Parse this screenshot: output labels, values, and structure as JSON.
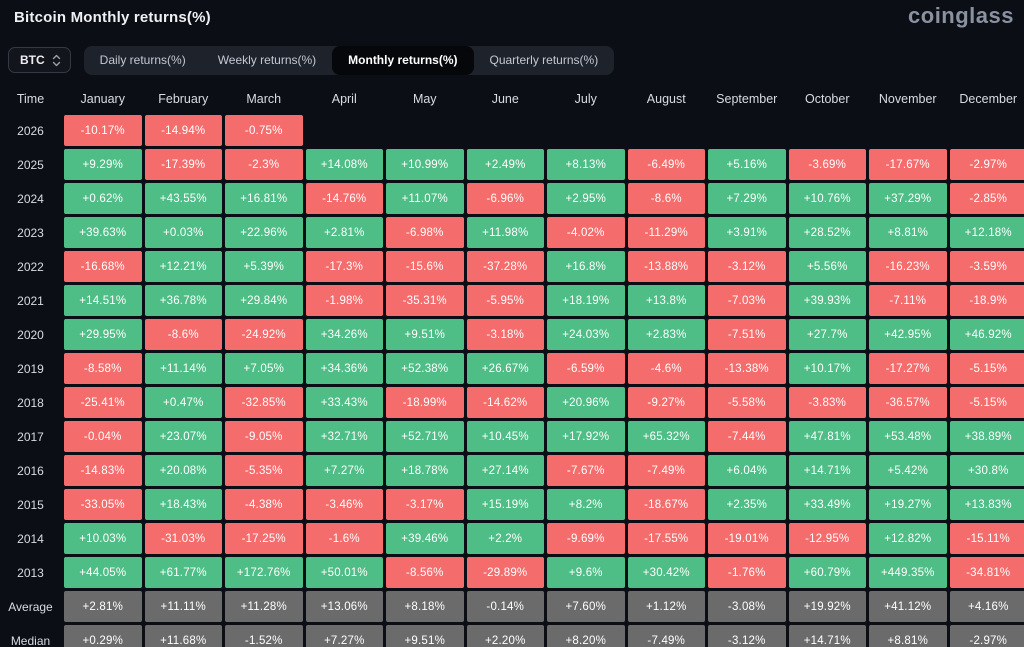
{
  "page": {
    "title": "Bitcoin Monthly returns(%)",
    "logo": "coinglass"
  },
  "controls": {
    "symbol": {
      "label": "BTC"
    },
    "tabs": [
      {
        "label": "Daily returns(%)",
        "active": false
      },
      {
        "label": "Weekly returns(%)",
        "active": false
      },
      {
        "label": "Monthly returns(%)",
        "active": true
      },
      {
        "label": "Quarterly returns(%)",
        "active": false
      }
    ]
  },
  "colors": {
    "positive": "#4ebe86",
    "negative": "#f56c6c",
    "summary": "#6b6b6b",
    "background": "#0b0e14"
  },
  "chart_data": {
    "type": "heatmap",
    "title": "Bitcoin Monthly returns(%)",
    "row_header": "Time",
    "columns": [
      "January",
      "February",
      "March",
      "April",
      "May",
      "June",
      "July",
      "August",
      "September",
      "October",
      "November",
      "December"
    ],
    "legend": "green = positive return, red = negative return, gray = summary rows",
    "rows": [
      {
        "label": "2026",
        "kind": "year",
        "values": [
          "-10.17%",
          "-14.94%",
          "-0.75%",
          null,
          null,
          null,
          null,
          null,
          null,
          null,
          null,
          null
        ]
      },
      {
        "label": "2025",
        "kind": "year",
        "values": [
          "+9.29%",
          "-17.39%",
          "-2.3%",
          "+14.08%",
          "+10.99%",
          "+2.49%",
          "+8.13%",
          "-6.49%",
          "+5.16%",
          "-3.69%",
          "-17.67%",
          "-2.97%"
        ]
      },
      {
        "label": "2024",
        "kind": "year",
        "values": [
          "+0.62%",
          "+43.55%",
          "+16.81%",
          "-14.76%",
          "+11.07%",
          "-6.96%",
          "+2.95%",
          "-8.6%",
          "+7.29%",
          "+10.76%",
          "+37.29%",
          "-2.85%"
        ]
      },
      {
        "label": "2023",
        "kind": "year",
        "values": [
          "+39.63%",
          "+0.03%",
          "+22.96%",
          "+2.81%",
          "-6.98%",
          "+11.98%",
          "-4.02%",
          "-11.29%",
          "+3.91%",
          "+28.52%",
          "+8.81%",
          "+12.18%"
        ]
      },
      {
        "label": "2022",
        "kind": "year",
        "values": [
          "-16.68%",
          "+12.21%",
          "+5.39%",
          "-17.3%",
          "-15.6%",
          "-37.28%",
          "+16.8%",
          "-13.88%",
          "-3.12%",
          "+5.56%",
          "-16.23%",
          "-3.59%"
        ]
      },
      {
        "label": "2021",
        "kind": "year",
        "values": [
          "+14.51%",
          "+36.78%",
          "+29.84%",
          "-1.98%",
          "-35.31%",
          "-5.95%",
          "+18.19%",
          "+13.8%",
          "-7.03%",
          "+39.93%",
          "-7.11%",
          "-18.9%"
        ]
      },
      {
        "label": "2020",
        "kind": "year",
        "values": [
          "+29.95%",
          "-8.6%",
          "-24.92%",
          "+34.26%",
          "+9.51%",
          "-3.18%",
          "+24.03%",
          "+2.83%",
          "-7.51%",
          "+27.7%",
          "+42.95%",
          "+46.92%"
        ]
      },
      {
        "label": "2019",
        "kind": "year",
        "values": [
          "-8.58%",
          "+11.14%",
          "+7.05%",
          "+34.36%",
          "+52.38%",
          "+26.67%",
          "-6.59%",
          "-4.6%",
          "-13.38%",
          "+10.17%",
          "-17.27%",
          "-5.15%"
        ]
      },
      {
        "label": "2018",
        "kind": "year",
        "values": [
          "-25.41%",
          "+0.47%",
          "-32.85%",
          "+33.43%",
          "-18.99%",
          "-14.62%",
          "+20.96%",
          "-9.27%",
          "-5.58%",
          "-3.83%",
          "-36.57%",
          "-5.15%"
        ]
      },
      {
        "label": "2017",
        "kind": "year",
        "values": [
          "-0.04%",
          "+23.07%",
          "-9.05%",
          "+32.71%",
          "+52.71%",
          "+10.45%",
          "+17.92%",
          "+65.32%",
          "-7.44%",
          "+47.81%",
          "+53.48%",
          "+38.89%"
        ]
      },
      {
        "label": "2016",
        "kind": "year",
        "values": [
          "-14.83%",
          "+20.08%",
          "-5.35%",
          "+7.27%",
          "+18.78%",
          "+27.14%",
          "-7.67%",
          "-7.49%",
          "+6.04%",
          "+14.71%",
          "+5.42%",
          "+30.8%"
        ]
      },
      {
        "label": "2015",
        "kind": "year",
        "values": [
          "-33.05%",
          "+18.43%",
          "-4.38%",
          "-3.46%",
          "-3.17%",
          "+15.19%",
          "+8.2%",
          "-18.67%",
          "+2.35%",
          "+33.49%",
          "+19.27%",
          "+13.83%"
        ]
      },
      {
        "label": "2014",
        "kind": "year",
        "values": [
          "+10.03%",
          "-31.03%",
          "-17.25%",
          "-1.6%",
          "+39.46%",
          "+2.2%",
          "-9.69%",
          "-17.55%",
          "-19.01%",
          "-12.95%",
          "+12.82%",
          "-15.11%"
        ]
      },
      {
        "label": "2013",
        "kind": "year",
        "values": [
          "+44.05%",
          "+61.77%",
          "+172.76%",
          "+50.01%",
          "-8.56%",
          "-29.89%",
          "+9.6%",
          "+30.42%",
          "-1.76%",
          "+60.79%",
          "+449.35%",
          "-34.81%"
        ]
      },
      {
        "label": "Average",
        "kind": "summary",
        "values": [
          "+2.81%",
          "+11.11%",
          "+11.28%",
          "+13.06%",
          "+8.18%",
          "-0.14%",
          "+7.60%",
          "+1.12%",
          "-3.08%",
          "+19.92%",
          "+41.12%",
          "+4.16%"
        ]
      },
      {
        "label": "Median",
        "kind": "summary",
        "values": [
          "+0.29%",
          "+11.68%",
          "-1.52%",
          "+7.27%",
          "+9.51%",
          "+2.20%",
          "+8.20%",
          "-7.49%",
          "-3.12%",
          "+14.71%",
          "+8.81%",
          "-2.97%"
        ]
      }
    ]
  }
}
